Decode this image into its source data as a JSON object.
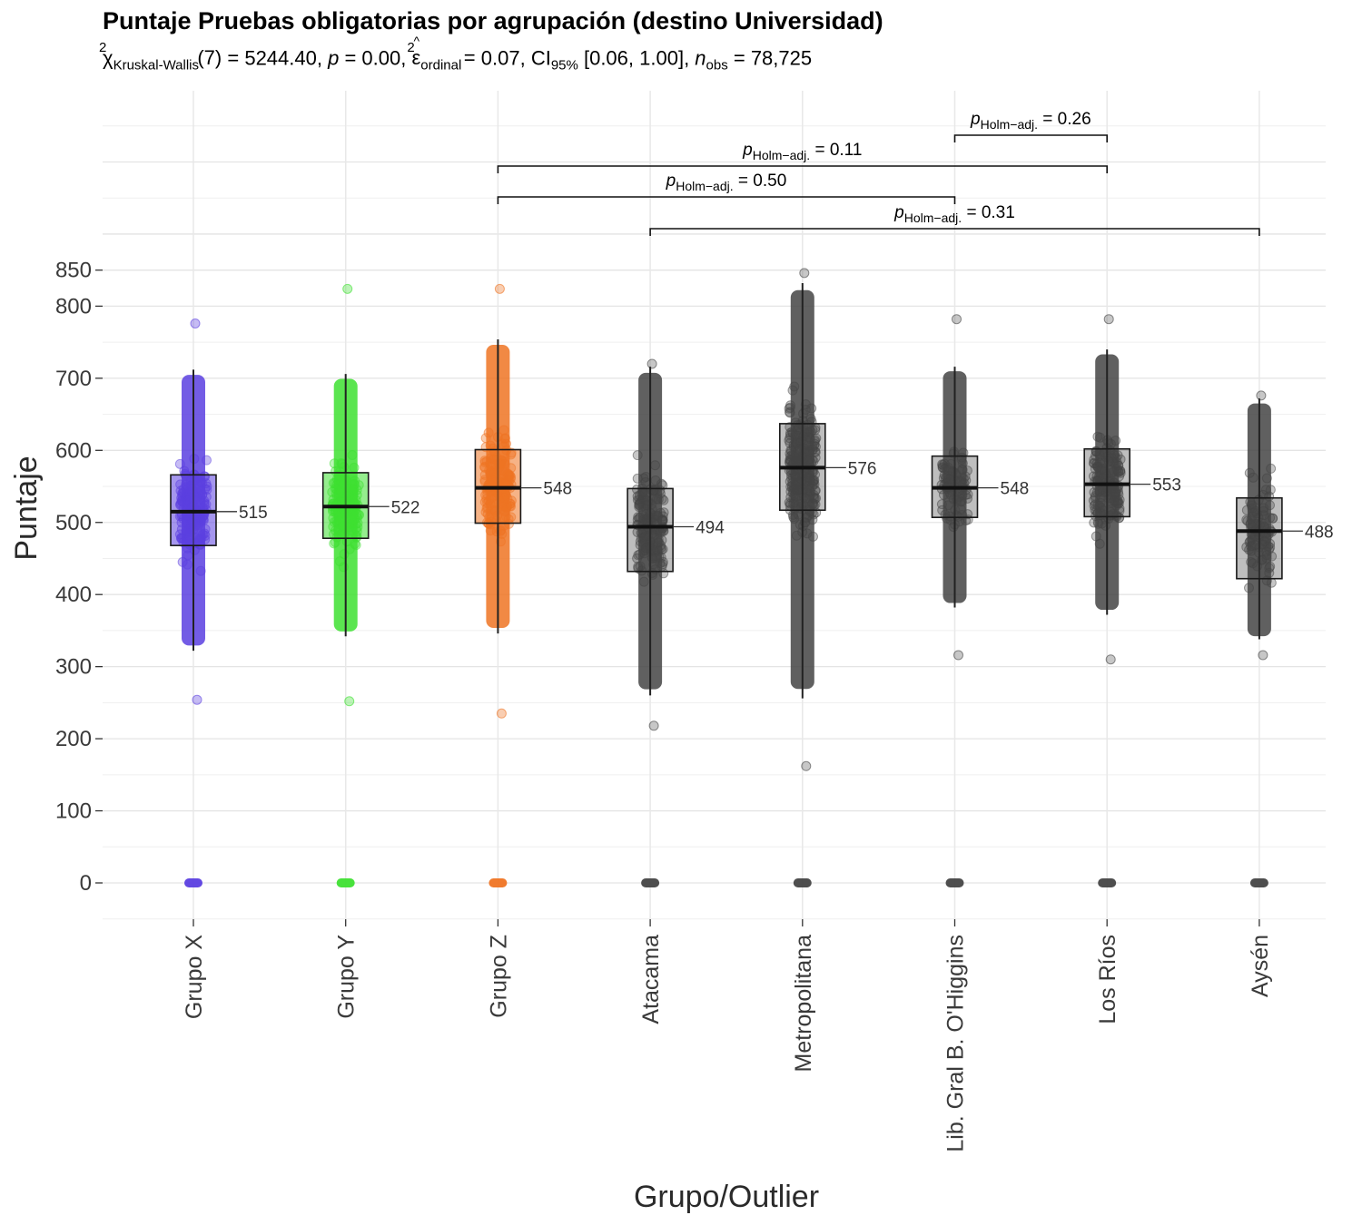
{
  "chart_data": {
    "type": "box",
    "title": "Puntaje Pruebas obligatorias por agrupación (destino Universidad)",
    "subtitle": {
      "chi_symbol": "χ",
      "chi_sup": "2",
      "chi_sub": "Kruskal-Wallis",
      "df": "(7)",
      "stat": "5244.40",
      "p_label": "p",
      "p_value": "0.00",
      "eps_symbol": "ε",
      "eps_sup": "2",
      "eps_sub": "ordinal",
      "eps_value": "0.07",
      "ci_label": "CI",
      "ci_sub": "95%",
      "ci_value": "[0.06, 1.00]",
      "n_label": "n",
      "n_sub": "obs",
      "n_value": "78,725"
    },
    "xlabel": "Grupo/Outlier",
    "ylabel": "Puntaje",
    "ylim": [
      -50,
      900
    ],
    "y_ticks": [
      0,
      100,
      200,
      300,
      400,
      500,
      600,
      700,
      800,
      850
    ],
    "grid": true,
    "categories": [
      "Grupo X",
      "Grupo Y",
      "Grupo Z",
      "Atacama",
      "Metropolitana",
      "Lib. Gral B. O'Higgins",
      "Los Ríos",
      "Aysén"
    ],
    "colors": [
      "#5b3fe0",
      "#3ee031",
      "#ef7423",
      "#444444",
      "#444444",
      "#444444",
      "#444444",
      "#444444"
    ],
    "boxes": [
      {
        "category": "Grupo X",
        "q1": 468,
        "median": 515,
        "q3": 566,
        "whisker_low": 322,
        "whisker_high": 712,
        "point_min": 254,
        "point_max": 776,
        "median_label": "515"
      },
      {
        "category": "Grupo Y",
        "q1": 478,
        "median": 522,
        "q3": 569,
        "whisker_low": 342,
        "whisker_high": 706,
        "point_min": 252,
        "point_max": 824,
        "median_label": "522"
      },
      {
        "category": "Grupo Z",
        "q1": 499,
        "median": 548,
        "q3": 601,
        "whisker_low": 346,
        "whisker_high": 754,
        "point_min": 235,
        "point_max": 824,
        "median_label": "548"
      },
      {
        "category": "Atacama",
        "q1": 432,
        "median": 494,
        "q3": 547,
        "whisker_low": 260,
        "whisker_high": 716,
        "point_min": 218,
        "point_max": 720,
        "median_label": "494"
      },
      {
        "category": "Metropolitana",
        "q1": 517,
        "median": 576,
        "q3": 637,
        "whisker_low": 256,
        "whisker_high": 832,
        "point_min": 162,
        "point_max": 846,
        "median_label": "576"
      },
      {
        "category": "Lib. Gral B. O'Higgins",
        "q1": 507,
        "median": 548,
        "q3": 592,
        "whisker_low": 382,
        "whisker_high": 716,
        "point_min": 316,
        "point_max": 782,
        "median_label": "548"
      },
      {
        "category": "Los Ríos",
        "q1": 508,
        "median": 553,
        "q3": 602,
        "whisker_low": 372,
        "whisker_high": 740,
        "point_min": 310,
        "point_max": 782,
        "median_label": "553"
      },
      {
        "category": "Aysén",
        "q1": 422,
        "median": 488,
        "q3": 534,
        "whisker_low": 338,
        "whisker_high": 672,
        "point_min": 316,
        "point_max": 676,
        "median_label": "488"
      }
    ],
    "zero_points": [
      0,
      0,
      0,
      0,
      0,
      0,
      0,
      0
    ],
    "comparisons": [
      {
        "from": "Lib. Gral B. O'Higgins",
        "to": "Los Ríos",
        "p_symbol": "p",
        "p_sub": "Holm−adj.",
        "p_value": "0.26"
      },
      {
        "from": "Grupo Z",
        "to": "Los Ríos",
        "p_symbol": "p",
        "p_sub": "Holm−adj.",
        "p_value": "0.11"
      },
      {
        "from": "Grupo Z",
        "to": "Lib. Gral B. O'Higgins",
        "p_symbol": "p",
        "p_sub": "Holm−adj.",
        "p_value": "0.50"
      },
      {
        "from": "Atacama",
        "to": "Aysén",
        "p_symbol": "p",
        "p_sub": "Holm−adj.",
        "p_value": "0.31"
      }
    ]
  }
}
